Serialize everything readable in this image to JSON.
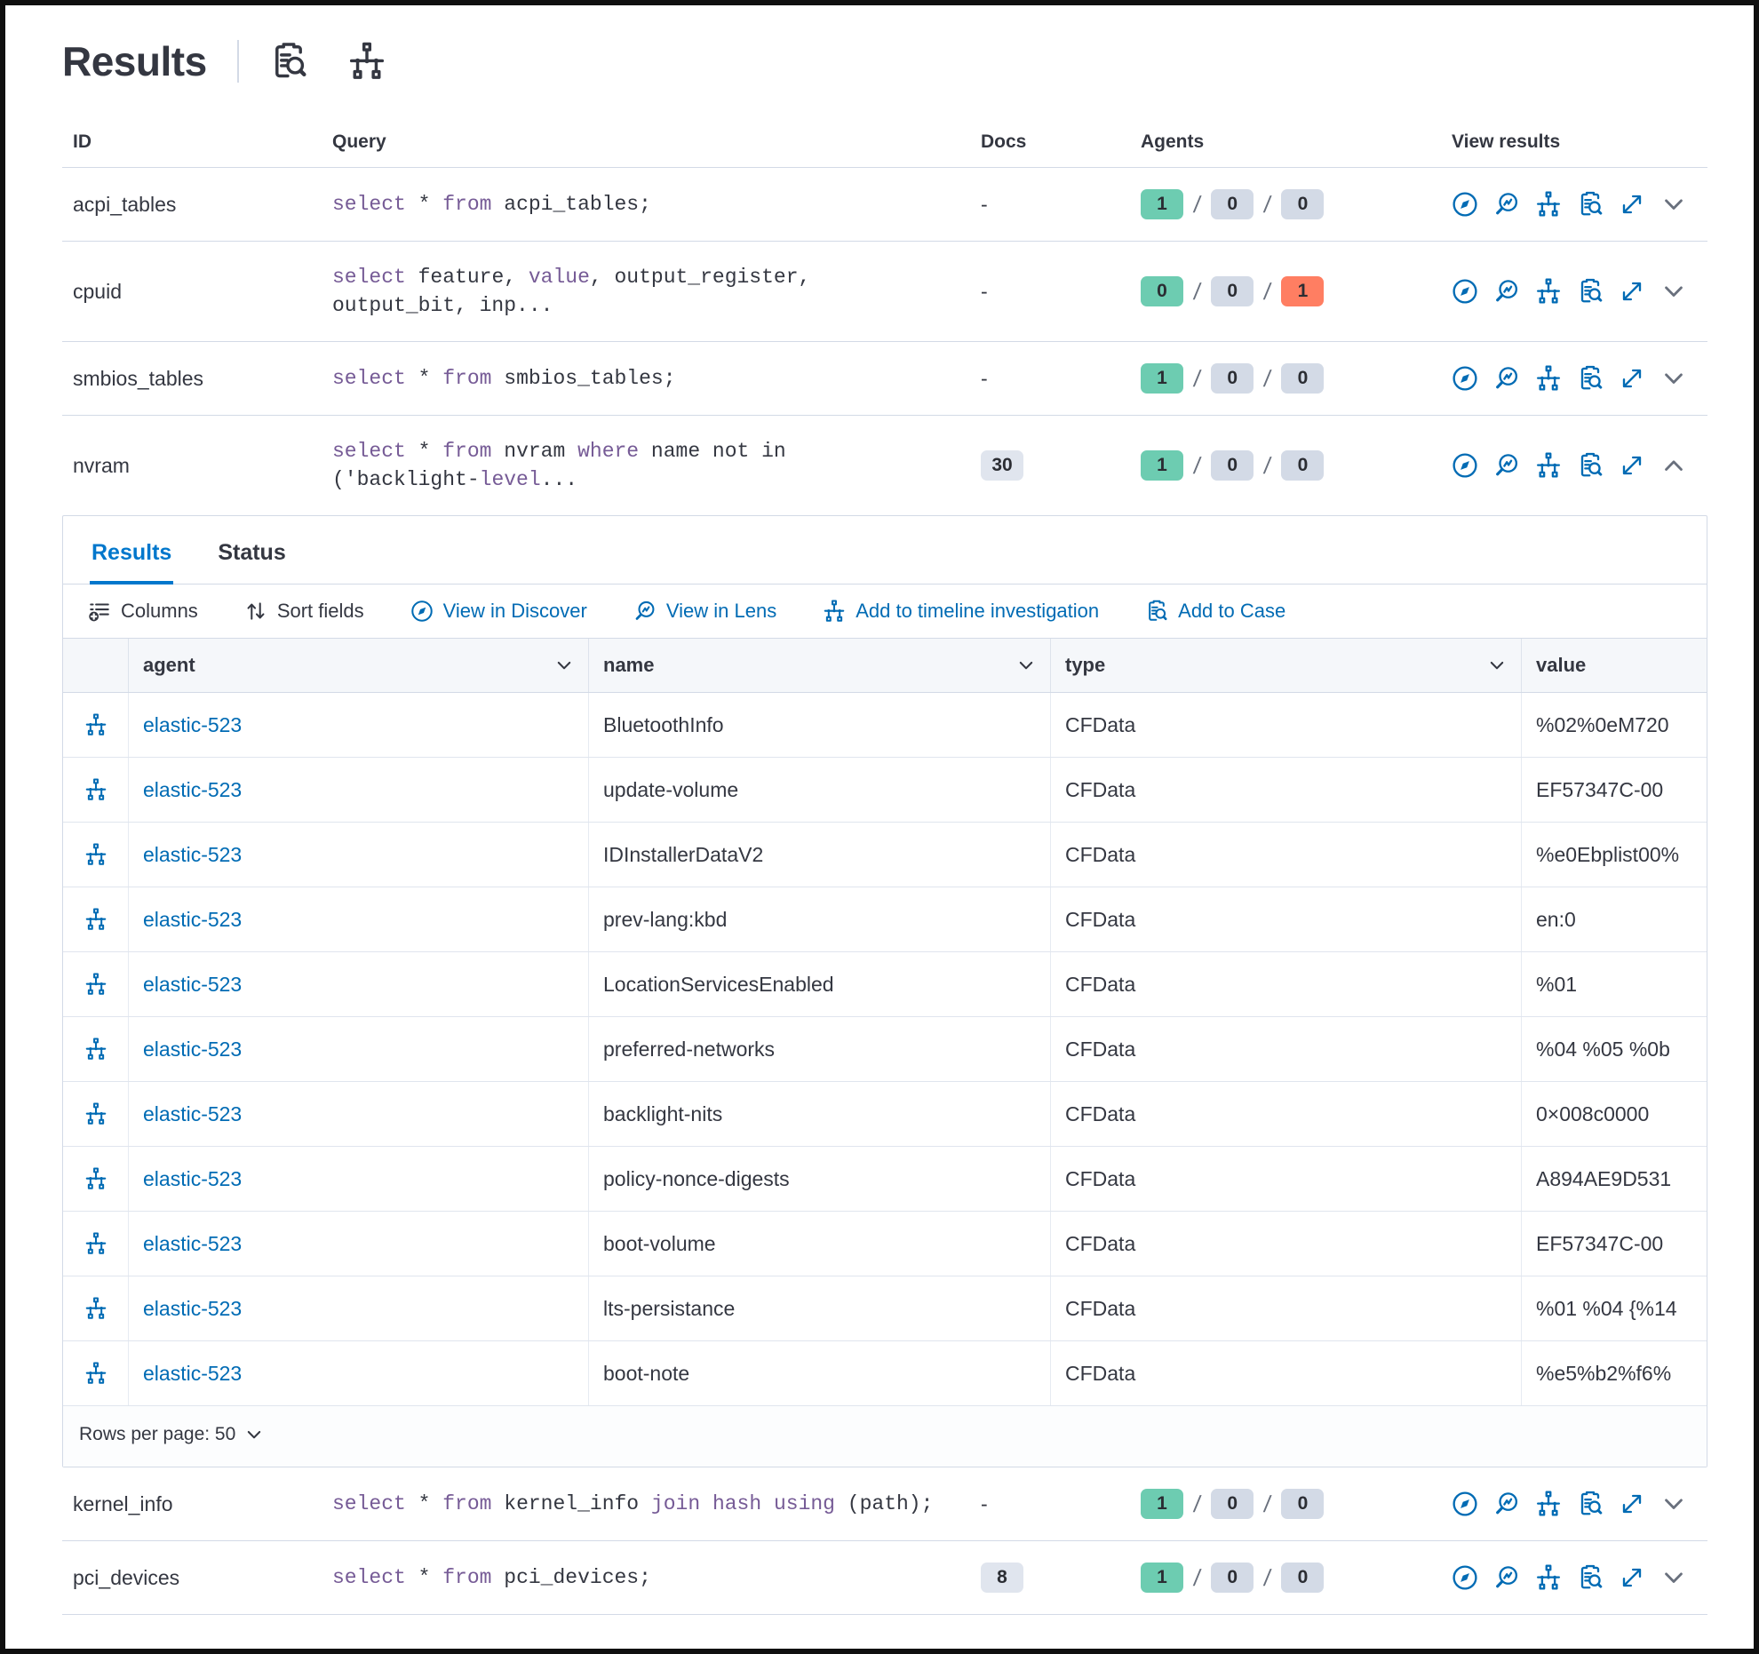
{
  "colors": {
    "primary": "#006BB4",
    "active_tab": "#0077CC",
    "keyword": "#765B96",
    "success_badge": "#6DCCB1",
    "danger_badge": "#FF7E62",
    "neutral_badge": "#D3DAE6",
    "docs_badge": "#E0E5EE",
    "text": "#343741"
  },
  "header": {
    "title": "Results",
    "icons": [
      "inspect-icon",
      "timeline-icon"
    ]
  },
  "results_table": {
    "columns": [
      "ID",
      "Query",
      "Docs",
      "Agents",
      "View results"
    ],
    "agents_separator": "/",
    "view_action_icons": [
      "discover-icon",
      "lens-icon",
      "timeline-icon",
      "case-icon",
      "expand-icon"
    ],
    "rows": [
      {
        "id": "acpi_tables",
        "query": [
          {
            "k": "select"
          },
          {
            "t": " * "
          },
          {
            "k": "from"
          },
          {
            "t": " acpi_tables;"
          }
        ],
        "docs": "-",
        "docs_is_badge": false,
        "agents": {
          "ok": "1",
          "pending": "0",
          "failed": "0",
          "failed_danger": false
        },
        "expanded": false
      },
      {
        "id": "cpuid",
        "query": [
          {
            "k": "select"
          },
          {
            "t": " feature, "
          },
          {
            "k": "value"
          },
          {
            "t": ", output_register,"
          },
          {
            "br": true
          },
          {
            "t": "output_bit, inp..."
          }
        ],
        "docs": "-",
        "docs_is_badge": false,
        "agents": {
          "ok": "0",
          "pending": "0",
          "failed": "1",
          "failed_danger": true
        },
        "expanded": false
      },
      {
        "id": "smbios_tables",
        "query": [
          {
            "k": "select"
          },
          {
            "t": " * "
          },
          {
            "k": "from"
          },
          {
            "t": " smbios_tables;"
          }
        ],
        "docs": "-",
        "docs_is_badge": false,
        "agents": {
          "ok": "1",
          "pending": "0",
          "failed": "0",
          "failed_danger": false
        },
        "expanded": false
      },
      {
        "id": "nvram",
        "query": [
          {
            "k": "select"
          },
          {
            "t": " * "
          },
          {
            "k": "from"
          },
          {
            "t": " nvram "
          },
          {
            "k": "where"
          },
          {
            "t": " name not in"
          },
          {
            "br": true
          },
          {
            "t": "('backlight-"
          },
          {
            "k": "level"
          },
          {
            "t": "..."
          }
        ],
        "docs": "30",
        "docs_is_badge": true,
        "agents": {
          "ok": "1",
          "pending": "0",
          "failed": "0",
          "failed_danger": false
        },
        "expanded": true
      },
      {
        "id": "kernel_info",
        "query": [
          {
            "k": "select"
          },
          {
            "t": " * "
          },
          {
            "k": "from"
          },
          {
            "t": " kernel_info "
          },
          {
            "k": "join"
          },
          {
            "t": " "
          },
          {
            "k": "hash"
          },
          {
            "t": " "
          },
          {
            "k": "using"
          },
          {
            "t": " (path);"
          }
        ],
        "docs": "-",
        "docs_is_badge": false,
        "agents": {
          "ok": "1",
          "pending": "0",
          "failed": "0",
          "failed_danger": false
        },
        "expanded": false
      },
      {
        "id": "pci_devices",
        "query": [
          {
            "k": "select"
          },
          {
            "t": " * "
          },
          {
            "k": "from"
          },
          {
            "t": " pci_devices;"
          }
        ],
        "docs": "8",
        "docs_is_badge": true,
        "agents": {
          "ok": "1",
          "pending": "0",
          "failed": "0",
          "failed_danger": false
        },
        "expanded": false
      }
    ]
  },
  "panel": {
    "tabs": [
      {
        "label": "Results",
        "active": true
      },
      {
        "label": "Status",
        "active": false
      }
    ],
    "toolbar": [
      {
        "label": "Columns",
        "icon": "columns-icon",
        "primary": false
      },
      {
        "label": "Sort fields",
        "icon": "sort-icon",
        "primary": false
      },
      {
        "label": "View in Discover",
        "icon": "discover-icon",
        "primary": true
      },
      {
        "label": "View in Lens",
        "icon": "lens-icon",
        "primary": true
      },
      {
        "label": "Add to timeline investigation",
        "icon": "timeline-icon",
        "primary": true
      },
      {
        "label": "Add to Case",
        "icon": "case-icon",
        "primary": true
      }
    ],
    "grid": {
      "columns": [
        {
          "label": "agent",
          "sortable": true
        },
        {
          "label": "name",
          "sortable": true
        },
        {
          "label": "type",
          "sortable": true
        },
        {
          "label": "value",
          "sortable": false
        }
      ],
      "row_icon": "timeline-icon",
      "rows": [
        {
          "agent": "elastic-523",
          "name": "BluetoothInfo",
          "type": "CFData",
          "value": "%02%0eM720"
        },
        {
          "agent": "elastic-523",
          "name": "update-volume",
          "type": "CFData",
          "value": "EF57347C-00"
        },
        {
          "agent": "elastic-523",
          "name": "IDInstallerDataV2",
          "type": "CFData",
          "value": "%e0Ebplist00%"
        },
        {
          "agent": "elastic-523",
          "name": "prev-lang:kbd",
          "type": "CFData",
          "value": "en:0"
        },
        {
          "agent": "elastic-523",
          "name": "LocationServicesEnabled",
          "type": "CFData",
          "value": "%01"
        },
        {
          "agent": "elastic-523",
          "name": "preferred-networks",
          "type": "CFData",
          "value": "%04 %05 %0b"
        },
        {
          "agent": "elastic-523",
          "name": "backlight-nits",
          "type": "CFData",
          "value": "0×008c0000"
        },
        {
          "agent": "elastic-523",
          "name": "policy-nonce-digests",
          "type": "CFData",
          "value": "A894AE9D531"
        },
        {
          "agent": "elastic-523",
          "name": "boot-volume",
          "type": "CFData",
          "value": "EF57347C-00"
        },
        {
          "agent": "elastic-523",
          "name": "lts-persistance",
          "type": "CFData",
          "value": "%01 %04 {%14"
        },
        {
          "agent": "elastic-523",
          "name": "boot-note",
          "type": "CFData",
          "value": "%e5%b2%f6%"
        }
      ]
    },
    "footer": {
      "rows_per_page_label": "Rows per page: 50"
    }
  }
}
